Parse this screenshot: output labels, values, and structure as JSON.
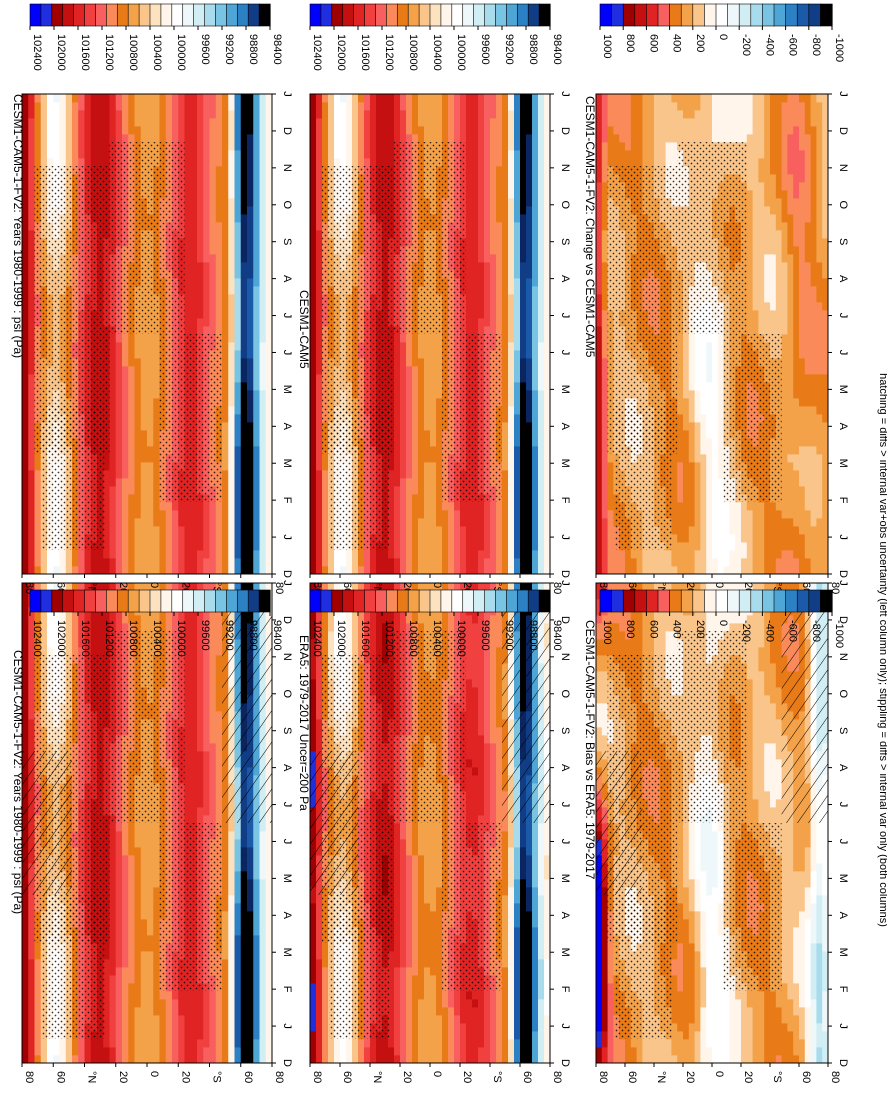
{
  "footnote": "hatching = diffs > internal var+obs uncertainty (left column only); stippling = diffs > internal var only (both columns)",
  "chart_data": [
    {
      "type": "heatmap",
      "title": "CESM1-CAM5-1-FV2: Years 1980-1999 : psl (Pa)",
      "y_ticks": [
        "J",
        "F",
        "M",
        "A",
        "M",
        "J",
        "J",
        "A",
        "S",
        "O",
        "N",
        "D",
        "J"
      ],
      "y_ticks_full": [
        "D",
        "J",
        "F",
        "M",
        "A",
        "M",
        "J",
        "J",
        "A",
        "S",
        "O",
        "N",
        "D",
        "J"
      ],
      "x_ticks": [
        "80",
        "60",
        "°N",
        "20",
        "0",
        "20",
        "°S",
        "60",
        "80"
      ],
      "colorbar": [
        "102400",
        "102000",
        "101600",
        "101200",
        "100800",
        "100400",
        "100000",
        "99600",
        "99200",
        "98800",
        "98400"
      ],
      "field": "abs",
      "hatch": true
    },
    {
      "type": "heatmap",
      "title": "CESM1-CAM5-1-FV2: Years 1980-1999 : psl (Pa)",
      "x_ticks": [
        "80",
        "60",
        "°N",
        "20",
        "0",
        "20",
        "°S",
        "60",
        "80"
      ],
      "colorbar": [
        "102400",
        "102000",
        "101600",
        "101200",
        "100800",
        "100400",
        "100000",
        "99600",
        "99200",
        "98800",
        "98400"
      ],
      "field": "abs",
      "hatch": false
    },
    {
      "type": "heatmap",
      "title": "ERA5: 1979-2017 Uncer=200 Pa",
      "x_ticks": [
        "80",
        "60",
        "°N",
        "20",
        "0",
        "20",
        "°S",
        "60",
        "80"
      ],
      "colorbar": [
        "102400",
        "102000",
        "101600",
        "101200",
        "100800",
        "100400",
        "100000",
        "99600",
        "99200",
        "98800",
        "98400"
      ],
      "field": "obs",
      "hatch": true
    },
    {
      "type": "heatmap",
      "title": "CESM1-CAM5",
      "x_ticks": [
        "80",
        "60",
        "°N",
        "20",
        "0",
        "20",
        "°S",
        "60",
        "80"
      ],
      "colorbar": [
        "102400",
        "102000",
        "101600",
        "101200",
        "100800",
        "100400",
        "100000",
        "99600",
        "99200",
        "98800",
        "98400"
      ],
      "field": "abs",
      "hatch": false
    },
    {
      "type": "heatmap",
      "title": "CESM1-CAM5-1-FV2: Bias vs ERA5: 1979-2017",
      "x_ticks": [
        "80",
        "60",
        "°N",
        "20",
        "0",
        "20",
        "°S",
        "60",
        "80"
      ],
      "colorbar": [
        "1000",
        "800",
        "600",
        "400",
        "200",
        "0",
        "-200",
        "-400",
        "-600",
        "-800",
        "-1000"
      ],
      "field": "bias",
      "hatch": true
    },
    {
      "type": "heatmap",
      "title": "CESM1-CAM5-1-FV2: Change vs CESM1-CAM5",
      "x_ticks": [
        "80",
        "60",
        "°N",
        "20",
        "0",
        "20",
        "°S",
        "60",
        "80"
      ],
      "colorbar": [
        "1000",
        "800",
        "600",
        "400",
        "200",
        "0",
        "-200",
        "-400",
        "-600",
        "-800",
        "-1000"
      ],
      "field": "change",
      "hatch": false
    }
  ],
  "colors": {
    "palette": [
      "#0000ff",
      "#1f2fe0",
      "#a00000",
      "#c41010",
      "#e02424",
      "#f04040",
      "#f86060",
      "#fb8a5a",
      "#e97a18",
      "#f3a24a",
      "#f9c58a",
      "#fde2c0",
      "#fff5ea",
      "#ffffff",
      "#eef8fb",
      "#d2eef5",
      "#a8dcec",
      "#78c4e2",
      "#4ea6d6",
      "#2c80c4",
      "#1a5aa8",
      "#113d86",
      "#0a2560",
      "#000000"
    ]
  }
}
